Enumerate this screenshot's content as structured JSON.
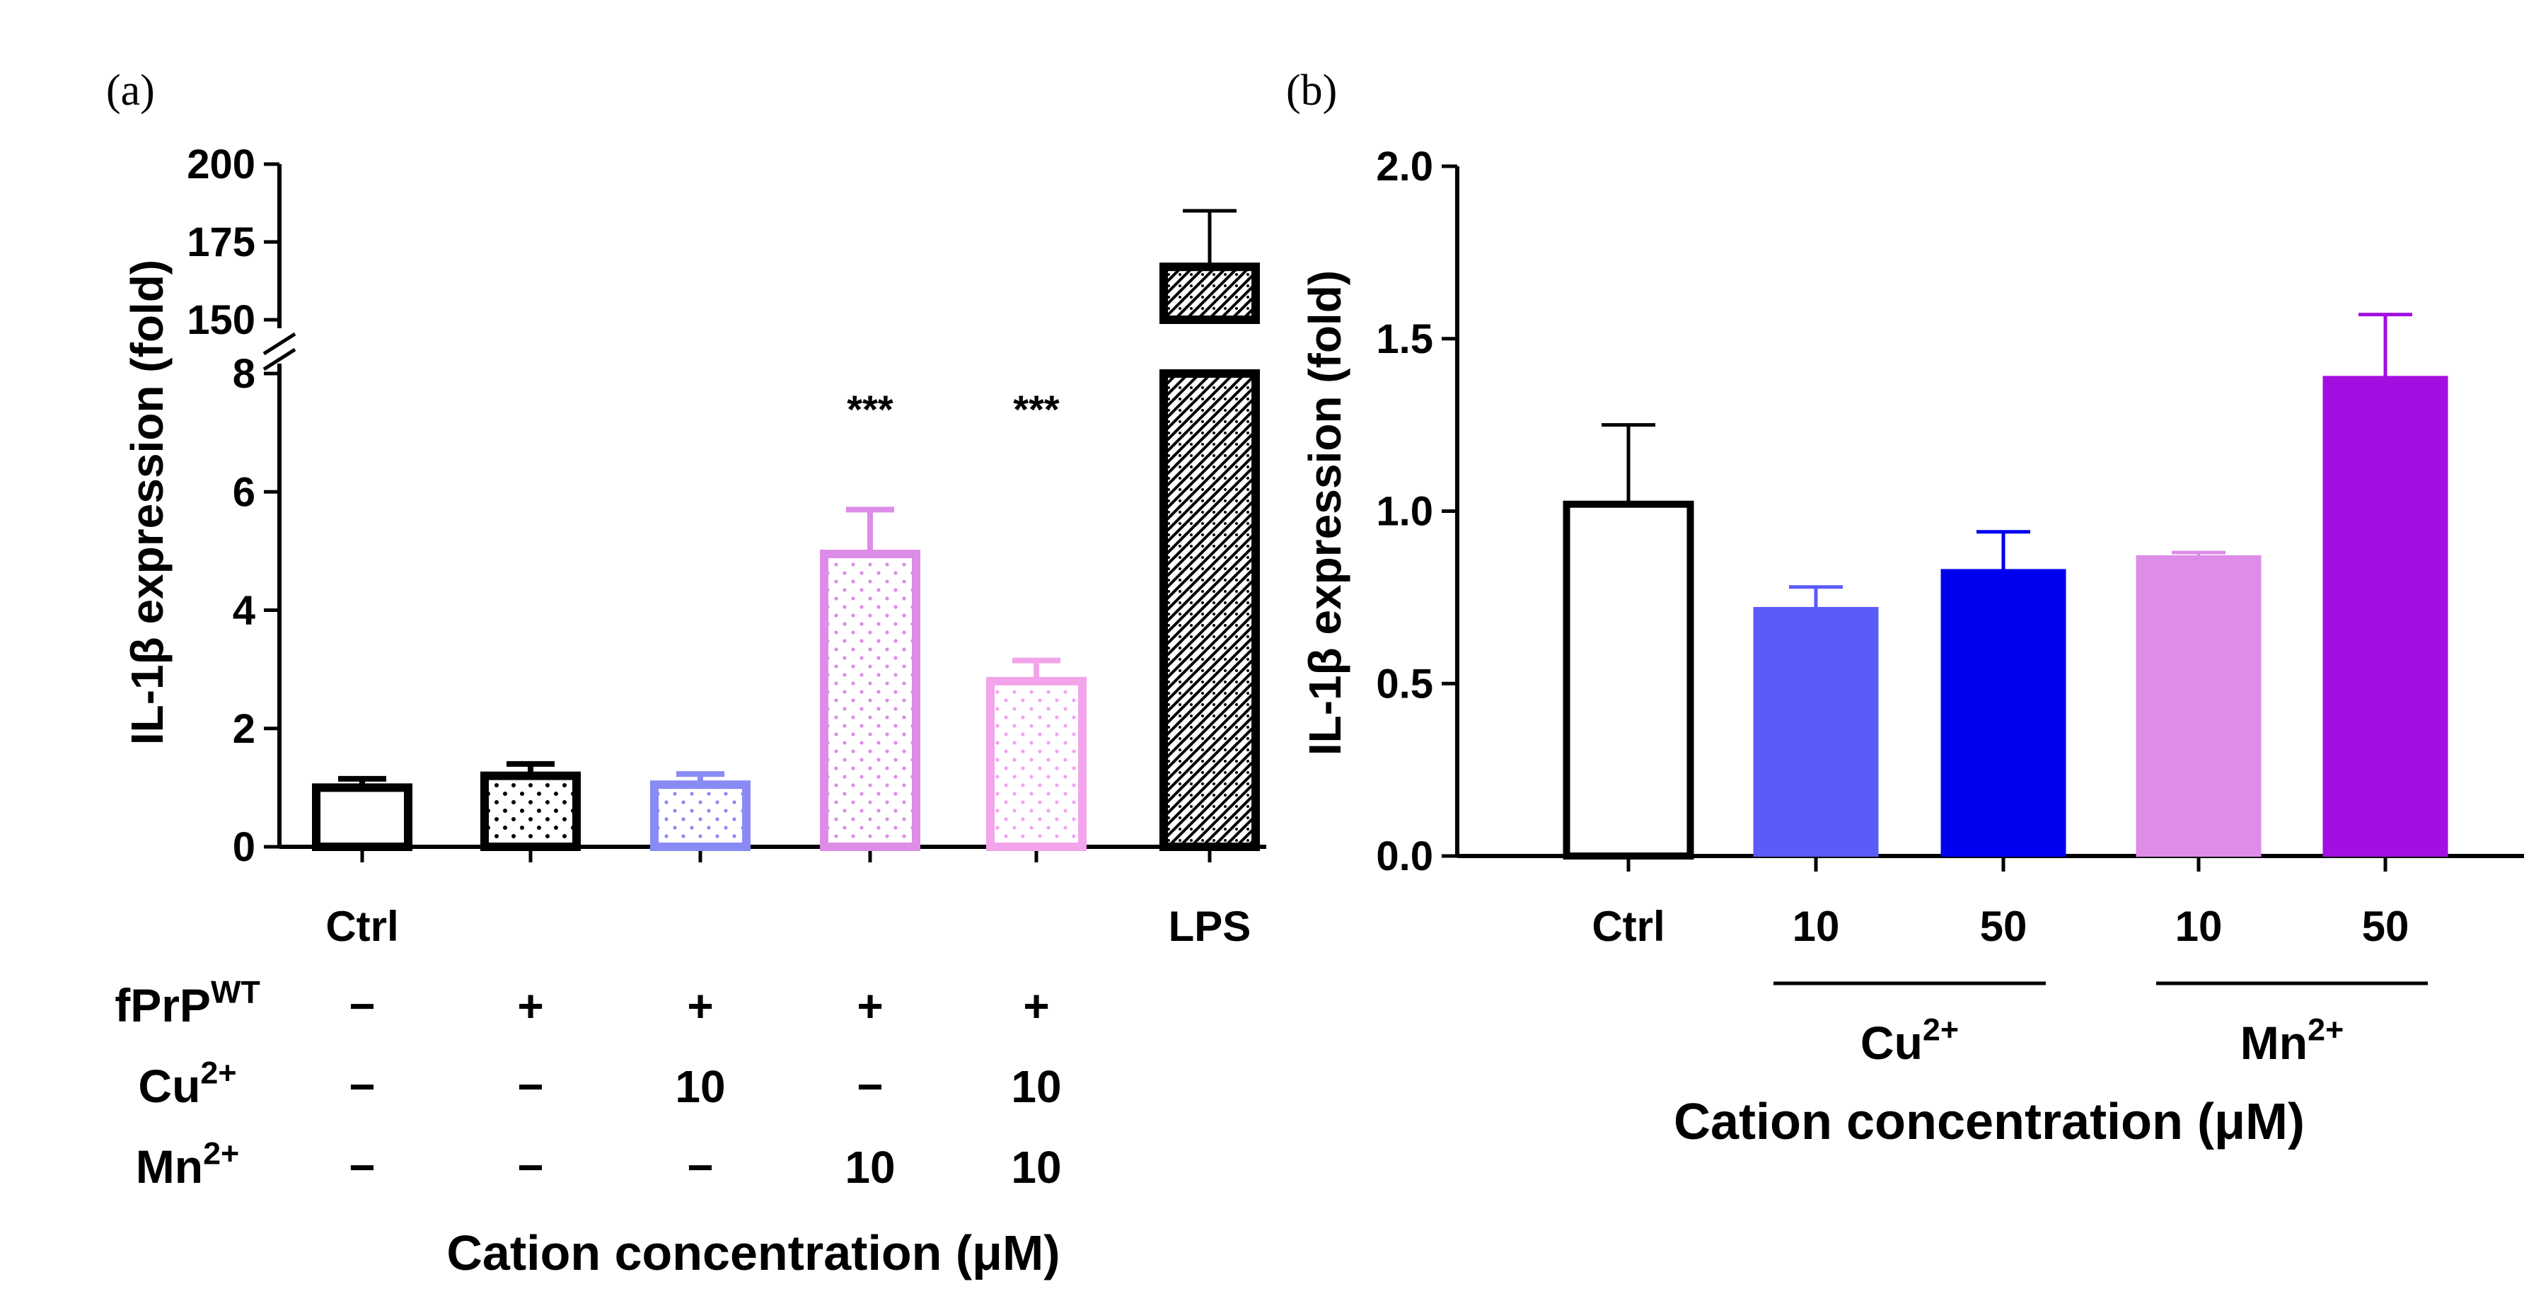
{
  "chart_data": [
    {
      "panel_label": "(a)",
      "type": "bar",
      "ylabel": "IL-1β expression (fold)",
      "xlabel": "Cation concentration (μM)",
      "y_axis_segments": [
        {
          "range": [
            0,
            8
          ],
          "ticks": [
            "0",
            "2",
            "4",
            "6",
            "8"
          ]
        },
        {
          "range": [
            150,
            200
          ],
          "ticks": [
            "150",
            "175",
            "200"
          ]
        }
      ],
      "bars": [
        {
          "category": "Ctrl",
          "value": 1.0,
          "error": 0.15,
          "color": "#000000",
          "pattern": "none",
          "significance": ""
        },
        {
          "category": "",
          "value": 1.2,
          "error": 0.2,
          "color": "#000000",
          "pattern": "dots",
          "significance": ""
        },
        {
          "category": "",
          "value": 1.05,
          "error": 0.18,
          "color": "#8a8af5",
          "pattern": "dots",
          "significance": ""
        },
        {
          "category": "",
          "value": 4.95,
          "error": 0.75,
          "color": "#dd8ce8",
          "pattern": "dots",
          "significance": "***"
        },
        {
          "category": "",
          "value": 2.8,
          "error": 0.35,
          "color": "#f2a5ea",
          "pattern": "dots",
          "significance": "***"
        },
        {
          "category": "LPS",
          "value": 167,
          "error": 18,
          "color": "#000000",
          "pattern": "hatch",
          "significance": ""
        }
      ],
      "treatment_table": [
        {
          "label": "fPrP",
          "sup": "WT",
          "values": [
            "−",
            "+",
            "+",
            "+",
            "+"
          ]
        },
        {
          "label": "Cu",
          "sup": "2+",
          "values": [
            "−",
            "−",
            "10",
            "−",
            "10"
          ]
        },
        {
          "label": "Mn",
          "sup": "2+",
          "values": [
            "−",
            "−",
            "−",
            "10",
            "10"
          ]
        }
      ]
    },
    {
      "panel_label": "(b)",
      "type": "bar",
      "ylabel": "IL-1β expression (fold)",
      "xlabel": "Cation concentration (μM)",
      "ylim": [
        0,
        2.0
      ],
      "ytick_labels": [
        "0.0",
        "0.5",
        "1.0",
        "1.5",
        "2.0"
      ],
      "categories": [
        "Ctrl",
        "10",
        "50",
        "10",
        "50"
      ],
      "values": [
        1.02,
        0.72,
        0.83,
        0.87,
        1.39
      ],
      "errors": [
        0.23,
        0.06,
        0.11,
        0.01,
        0.18
      ],
      "colors": [
        "#ffffff",
        "#5b5bf7",
        "#0000f0",
        "#dd8ce8",
        "#a20fe0"
      ],
      "groups": [
        {
          "label": "Cu",
          "sup": "2+",
          "from": 1,
          "to": 2
        },
        {
          "label": "Mn",
          "sup": "2+",
          "from": 3,
          "to": 4
        }
      ]
    }
  ]
}
